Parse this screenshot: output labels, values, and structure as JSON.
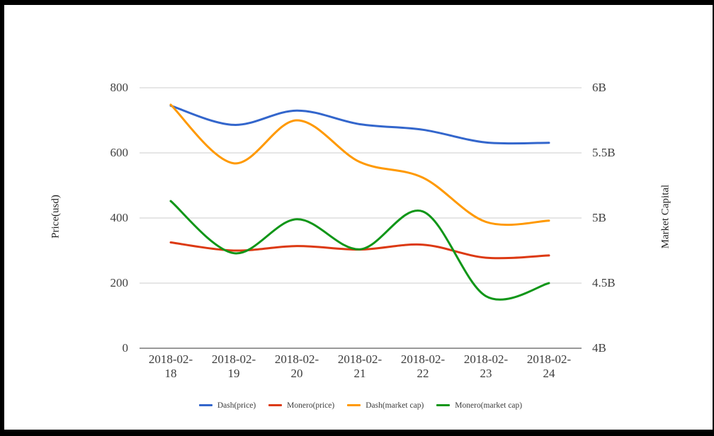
{
  "chart_data": {
    "type": "line",
    "curve": "smooth",
    "grid": true,
    "legend_position": "bottom",
    "x": [
      "2018-02-18",
      "2018-02-19",
      "2018-02-20",
      "2018-02-21",
      "2018-02-22",
      "2018-02-23",
      "2018-02-24"
    ],
    "series": [
      {
        "name": "Dash(price)",
        "axis": "left",
        "color": "#3366CC",
        "values": [
          745,
          686,
          730,
          688,
          671,
          632,
          631
        ]
      },
      {
        "name": "Monero(price)",
        "axis": "left",
        "color": "#DC3912",
        "values": [
          325,
          300,
          314,
          303,
          318,
          278,
          285
        ]
      },
      {
        "name": "Dash(market cap)",
        "axis": "right",
        "color": "#FF9900",
        "values": [
          5.87,
          5.42,
          5.75,
          5.43,
          5.31,
          4.97,
          4.98
        ]
      },
      {
        "name": "Monero(market cap)",
        "axis": "right",
        "color": "#109618",
        "values": [
          5.13,
          4.73,
          4.99,
          4.76,
          5.05,
          4.4,
          4.5
        ]
      }
    ],
    "left_axis": {
      "label": "Price(usd)",
      "ticks": [
        "0",
        "200",
        "400",
        "600",
        "800"
      ],
      "range": [
        0,
        800
      ]
    },
    "right_axis": {
      "label": "Market Capital",
      "ticks": [
        "4B",
        "4.5B",
        "5B",
        "5.5B",
        "6B"
      ],
      "range_billions": [
        4,
        6
      ]
    },
    "colors": {
      "gridline": "#cccccc",
      "baseline": "#333333",
      "tick_text": "#404040",
      "axis_title_text": "#222222"
    }
  }
}
